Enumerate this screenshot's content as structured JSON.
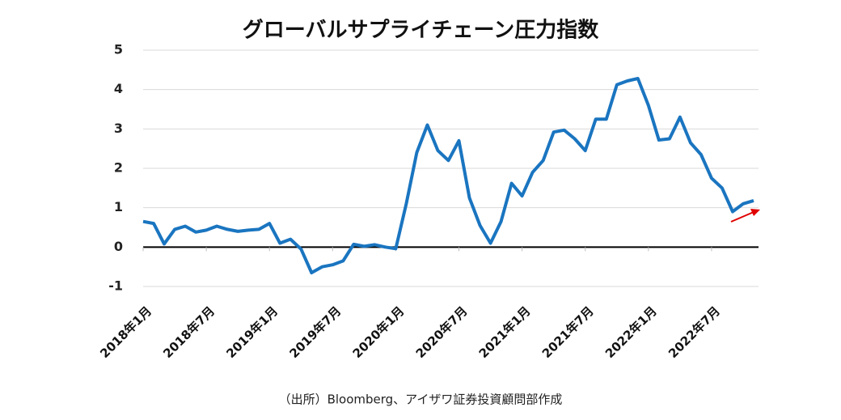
{
  "chart_data": {
    "type": "line",
    "title": "グローバルサプライチェーン圧力指数",
    "source": "（出所）Bloomberg、アイザワ証券投資顧問部作成",
    "categories": [
      "2018年1月",
      null,
      null,
      null,
      null,
      null,
      "2018年7月",
      null,
      null,
      null,
      null,
      null,
      "2019年1月",
      null,
      null,
      null,
      null,
      null,
      "2019年7月",
      null,
      null,
      null,
      null,
      null,
      "2020年1月",
      null,
      null,
      null,
      null,
      null,
      "2020年7月",
      null,
      null,
      null,
      null,
      null,
      "2021年1月",
      null,
      null,
      null,
      null,
      null,
      "2021年7月",
      null,
      null,
      null,
      null,
      null,
      "2022年1月",
      null,
      null,
      null,
      null,
      null,
      "2022年7月",
      null,
      null,
      null,
      null
    ],
    "series": [
      {
        "name": "グローバルサプライチェーン圧力指数",
        "color": "#1a75c0",
        "values": [
          0.65,
          0.6,
          0.08,
          0.45,
          0.53,
          0.38,
          0.43,
          0.53,
          0.45,
          0.4,
          0.43,
          0.45,
          0.6,
          0.1,
          0.2,
          -0.05,
          -0.65,
          -0.5,
          -0.45,
          -0.35,
          0.07,
          0.02,
          0.06,
          0.0,
          -0.04,
          1.1,
          2.4,
          3.1,
          2.45,
          2.2,
          2.7,
          1.25,
          0.55,
          0.1,
          0.65,
          1.62,
          1.3,
          1.9,
          2.2,
          2.92,
          2.97,
          2.75,
          2.45,
          3.25,
          3.25,
          4.12,
          4.22,
          4.28,
          3.6,
          2.72,
          2.75,
          3.3,
          2.65,
          2.35,
          1.75,
          1.5,
          0.9,
          1.1,
          1.18
        ]
      }
    ],
    "ylim": [
      -1,
      5
    ],
    "yticks": [
      -1,
      0,
      1,
      2,
      3,
      4,
      5
    ],
    "grid": true,
    "negative_tick_color": "#e00000",
    "zero_line_color": "#000000"
  }
}
